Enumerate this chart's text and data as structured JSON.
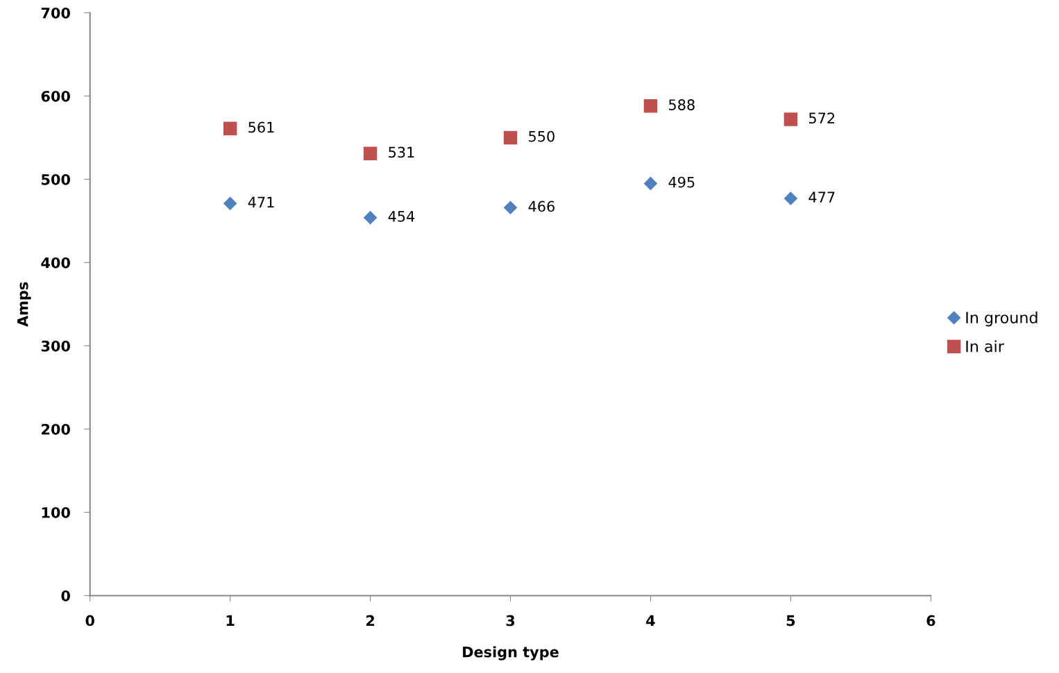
{
  "chart_data": {
    "type": "scatter",
    "xlabel": "Design type",
    "ylabel": "Amps",
    "x": [
      1,
      2,
      3,
      4,
      5
    ],
    "series": [
      {
        "name": "In ground",
        "color": "#4f81bd",
        "marker": "diamond",
        "values": [
          471,
          454,
          466,
          495,
          477
        ]
      },
      {
        "name": "In air",
        "color": "#c0504d",
        "marker": "square",
        "values": [
          561,
          531,
          550,
          588,
          572
        ]
      }
    ],
    "xlim": [
      0,
      6
    ],
    "xticks": [
      0,
      1,
      2,
      3,
      4,
      5,
      6
    ],
    "ylim": [
      0,
      700
    ],
    "yticks": [
      0,
      100,
      200,
      300,
      400,
      500,
      600,
      700
    ],
    "grid": false,
    "legend": "right",
    "data_labels": true
  }
}
